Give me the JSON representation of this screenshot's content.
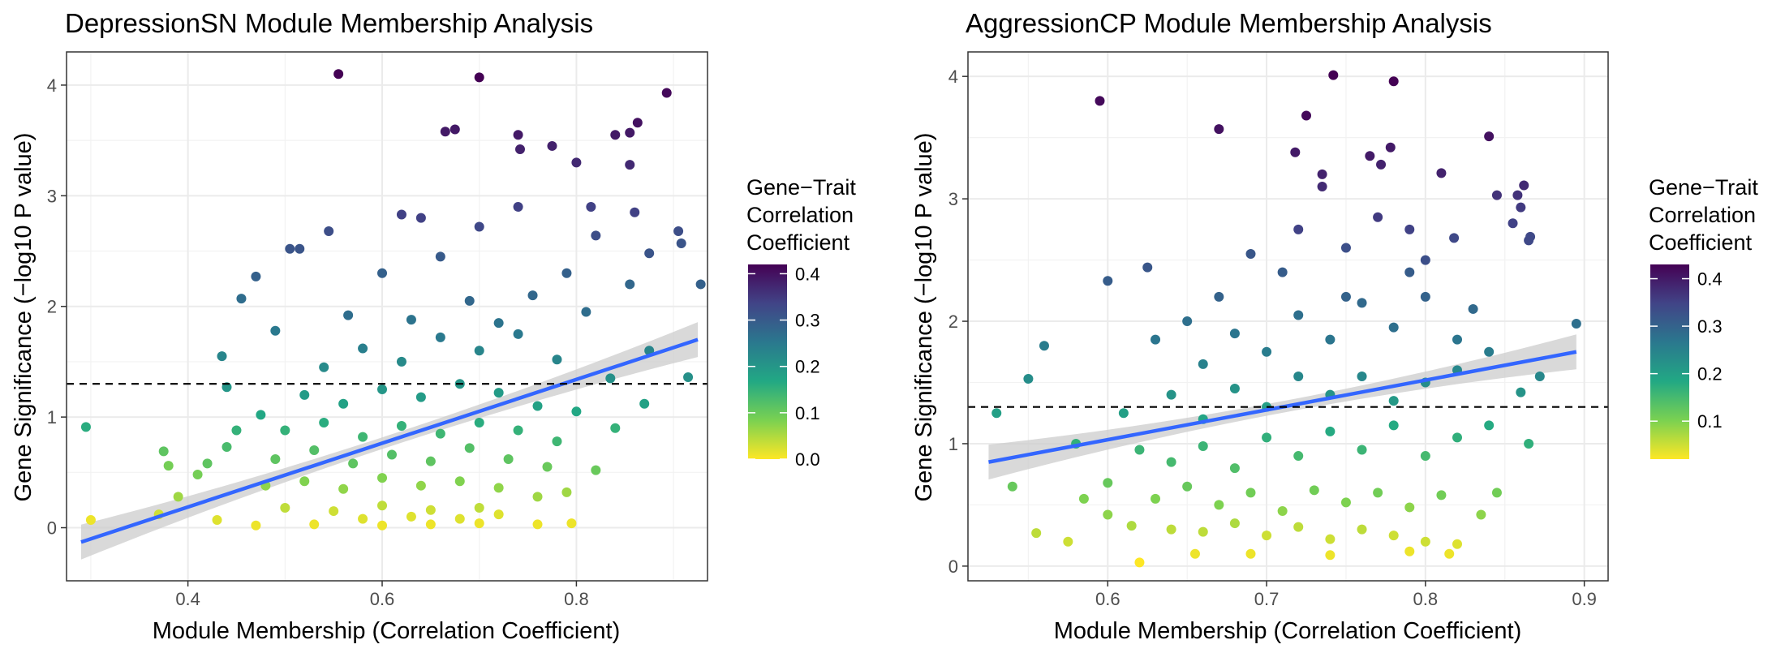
{
  "panels": [
    {
      "title": "DepressionSN Module Membership Analysis",
      "legend_title": [
        "Gene−Trait",
        "Correlation",
        "Coefficient"
      ]
    },
    {
      "title": "AggressionCP Module Membership Analysis",
      "legend_title": [
        "Gene−Trait",
        "Correlation",
        "Coefficient"
      ]
    }
  ],
  "colorscale": [
    "#fde725",
    "#7ad151",
    "#22a884",
    "#2a788e",
    "#414487",
    "#440154"
  ],
  "colors": {
    "fit_line": "#3366ff",
    "confidence_band": "#cccccc",
    "threshold_line": "#000000"
  },
  "chart_data": [
    {
      "type": "scatter",
      "title": "DepressionSN Module Membership Analysis",
      "xlabel": "Module Membership (Correlation Coefficient)",
      "ylabel": "Gene Significance (−log10 P value)",
      "xlim": [
        0.275,
        0.935
      ],
      "ylim": [
        -0.48,
        4.3
      ],
      "xticks": [
        0.4,
        0.6,
        0.8
      ],
      "yticks": [
        0,
        1,
        2,
        3,
        4
      ],
      "grid": true,
      "threshold": 1.3,
      "threshold_style": "dashed",
      "color_variable": "Gene-Trait Correlation Coefficient",
      "color_range": [
        0.0,
        0.42
      ],
      "colorbar_ticks": [
        0.0,
        0.1,
        0.2,
        0.3,
        0.4
      ],
      "fit": {
        "x": [
          0.29,
          0.925
        ],
        "y": [
          -0.13,
          1.7
        ]
      },
      "points": [
        [
          0.295,
          0.91,
          0.16
        ],
        [
          0.3,
          0.07,
          0.01
        ],
        [
          0.375,
          0.69,
          0.11
        ],
        [
          0.38,
          0.56,
          0.09
        ],
        [
          0.555,
          4.1,
          0.42
        ],
        [
          0.7,
          4.07,
          0.42
        ],
        [
          0.893,
          3.93,
          0.41
        ],
        [
          0.863,
          3.66,
          0.4
        ],
        [
          0.665,
          3.58,
          0.39
        ],
        [
          0.675,
          3.6,
          0.39
        ],
        [
          0.84,
          3.55,
          0.39
        ],
        [
          0.855,
          3.57,
          0.39
        ],
        [
          0.775,
          3.45,
          0.38
        ],
        [
          0.74,
          3.55,
          0.39
        ],
        [
          0.742,
          3.42,
          0.38
        ],
        [
          0.8,
          3.3,
          0.37
        ],
        [
          0.855,
          3.28,
          0.37
        ],
        [
          0.62,
          2.83,
          0.34
        ],
        [
          0.545,
          2.68,
          0.32
        ],
        [
          0.505,
          2.52,
          0.31
        ],
        [
          0.515,
          2.52,
          0.31
        ],
        [
          0.47,
          2.27,
          0.29
        ],
        [
          0.455,
          2.07,
          0.27
        ],
        [
          0.905,
          2.68,
          0.32
        ],
        [
          0.908,
          2.57,
          0.31
        ],
        [
          0.928,
          2.2,
          0.29
        ],
        [
          0.875,
          2.48,
          0.31
        ],
        [
          0.74,
          2.9,
          0.34
        ],
        [
          0.815,
          2.9,
          0.34
        ],
        [
          0.86,
          2.85,
          0.34
        ],
        [
          0.64,
          2.8,
          0.34
        ],
        [
          0.7,
          2.72,
          0.33
        ],
        [
          0.49,
          1.78,
          0.25
        ],
        [
          0.435,
          1.55,
          0.23
        ],
        [
          0.44,
          1.27,
          0.2
        ],
        [
          0.475,
          1.02,
          0.17
        ],
        [
          0.45,
          0.88,
          0.15
        ],
        [
          0.44,
          0.73,
          0.13
        ],
        [
          0.42,
          0.58,
          0.11
        ],
        [
          0.41,
          0.48,
          0.09
        ],
        [
          0.39,
          0.28,
          0.06
        ],
        [
          0.37,
          0.12,
          0.03
        ],
        [
          0.43,
          0.07,
          0.02
        ],
        [
          0.47,
          0.02,
          0.01
        ],
        [
          0.53,
          0.03,
          0.01
        ],
        [
          0.6,
          0.02,
          0.01
        ],
        [
          0.65,
          0.03,
          0.01
        ],
        [
          0.7,
          0.04,
          0.01
        ],
        [
          0.76,
          0.03,
          0.01
        ],
        [
          0.795,
          0.04,
          0.01
        ],
        [
          0.72,
          0.12,
          0.02
        ],
        [
          0.82,
          0.52,
          0.1
        ],
        [
          0.79,
          0.32,
          0.06
        ],
        [
          0.84,
          0.9,
          0.15
        ],
        [
          0.87,
          1.12,
          0.18
        ],
        [
          0.915,
          1.36,
          0.21
        ],
        [
          0.835,
          1.35,
          0.21
        ],
        [
          0.875,
          1.6,
          0.23
        ],
        [
          0.81,
          1.95,
          0.27
        ],
        [
          0.79,
          2.3,
          0.29
        ],
        [
          0.855,
          2.2,
          0.28
        ],
        [
          0.82,
          2.64,
          0.32
        ],
        [
          0.6,
          2.3,
          0.29
        ],
        [
          0.66,
          2.45,
          0.3
        ],
        [
          0.565,
          1.92,
          0.27
        ],
        [
          0.63,
          1.88,
          0.26
        ],
        [
          0.69,
          2.05,
          0.28
        ],
        [
          0.755,
          2.1,
          0.28
        ],
        [
          0.72,
          1.85,
          0.26
        ],
        [
          0.54,
          1.45,
          0.22
        ],
        [
          0.58,
          1.62,
          0.24
        ],
        [
          0.62,
          1.5,
          0.22
        ],
        [
          0.66,
          1.72,
          0.25
        ],
        [
          0.7,
          1.6,
          0.23
        ],
        [
          0.74,
          1.75,
          0.25
        ],
        [
          0.78,
          1.52,
          0.23
        ],
        [
          0.52,
          1.2,
          0.19
        ],
        [
          0.56,
          1.12,
          0.18
        ],
        [
          0.6,
          1.25,
          0.2
        ],
        [
          0.64,
          1.18,
          0.19
        ],
        [
          0.68,
          1.3,
          0.2
        ],
        [
          0.72,
          1.22,
          0.19
        ],
        [
          0.76,
          1.1,
          0.18
        ],
        [
          0.8,
          1.05,
          0.17
        ],
        [
          0.5,
          0.88,
          0.15
        ],
        [
          0.54,
          0.95,
          0.16
        ],
        [
          0.58,
          0.82,
          0.14
        ],
        [
          0.62,
          0.92,
          0.15
        ],
        [
          0.66,
          0.85,
          0.14
        ],
        [
          0.7,
          0.95,
          0.16
        ],
        [
          0.74,
          0.88,
          0.15
        ],
        [
          0.78,
          0.78,
          0.14
        ],
        [
          0.49,
          0.62,
          0.11
        ],
        [
          0.53,
          0.7,
          0.12
        ],
        [
          0.57,
          0.58,
          0.11
        ],
        [
          0.61,
          0.66,
          0.12
        ],
        [
          0.65,
          0.6,
          0.11
        ],
        [
          0.69,
          0.72,
          0.12
        ],
        [
          0.73,
          0.62,
          0.11
        ],
        [
          0.77,
          0.55,
          0.1
        ],
        [
          0.48,
          0.38,
          0.07
        ],
        [
          0.52,
          0.42,
          0.08
        ],
        [
          0.56,
          0.35,
          0.07
        ],
        [
          0.6,
          0.45,
          0.08
        ],
        [
          0.64,
          0.38,
          0.07
        ],
        [
          0.68,
          0.42,
          0.08
        ],
        [
          0.72,
          0.36,
          0.07
        ],
        [
          0.76,
          0.28,
          0.06
        ],
        [
          0.5,
          0.18,
          0.04
        ],
        [
          0.55,
          0.15,
          0.03
        ],
        [
          0.6,
          0.2,
          0.04
        ],
        [
          0.65,
          0.16,
          0.03
        ],
        [
          0.7,
          0.18,
          0.04
        ],
        [
          0.68,
          0.08,
          0.02
        ],
        [
          0.58,
          0.08,
          0.02
        ],
        [
          0.63,
          0.1,
          0.02
        ]
      ]
    },
    {
      "type": "scatter",
      "title": "AggressionCP Module Membership Analysis",
      "xlabel": "Module Membership (Correlation Coefficient)",
      "ylabel": "Gene Significance (−log10 P value)",
      "xlim": [
        0.512,
        0.915
      ],
      "ylim": [
        -0.12,
        4.2
      ],
      "xticks": [
        0.6,
        0.7,
        0.8,
        0.9
      ],
      "yticks": [
        0,
        1,
        2,
        3,
        4
      ],
      "grid": true,
      "threshold": 1.3,
      "threshold_style": "dashed",
      "color_variable": "Gene-Trait Correlation Coefficient",
      "color_range": [
        0.02,
        0.43
      ],
      "colorbar_ticks": [
        0.1,
        0.2,
        0.3,
        0.4
      ],
      "fit": {
        "x": [
          0.525,
          0.895
        ],
        "y": [
          0.85,
          1.75
        ]
      },
      "points": [
        [
          0.595,
          3.8,
          0.42
        ],
        [
          0.67,
          3.57,
          0.41
        ],
        [
          0.742,
          4.01,
          0.43
        ],
        [
          0.78,
          3.96,
          0.43
        ],
        [
          0.725,
          3.68,
          0.42
        ],
        [
          0.718,
          3.38,
          0.4
        ],
        [
          0.765,
          3.35,
          0.4
        ],
        [
          0.778,
          3.42,
          0.4
        ],
        [
          0.772,
          3.28,
          0.39
        ],
        [
          0.735,
          3.2,
          0.39
        ],
        [
          0.735,
          3.1,
          0.38
        ],
        [
          0.81,
          3.21,
          0.39
        ],
        [
          0.84,
          3.51,
          0.41
        ],
        [
          0.862,
          3.11,
          0.38
        ],
        [
          0.858,
          3.03,
          0.37
        ],
        [
          0.845,
          3.03,
          0.37
        ],
        [
          0.86,
          2.93,
          0.36
        ],
        [
          0.855,
          2.8,
          0.35
        ],
        [
          0.866,
          2.69,
          0.34
        ],
        [
          0.865,
          2.66,
          0.34
        ],
        [
          0.818,
          2.68,
          0.34
        ],
        [
          0.79,
          2.75,
          0.35
        ],
        [
          0.8,
          2.5,
          0.33
        ],
        [
          0.6,
          2.33,
          0.31
        ],
        [
          0.625,
          2.44,
          0.32
        ],
        [
          0.56,
          1.8,
          0.26
        ],
        [
          0.55,
          1.53,
          0.23
        ],
        [
          0.53,
          1.25,
          0.2
        ],
        [
          0.54,
          0.65,
          0.12
        ],
        [
          0.555,
          0.27,
          0.06
        ],
        [
          0.575,
          0.2,
          0.05
        ],
        [
          0.62,
          0.03,
          0.02
        ],
        [
          0.655,
          0.1,
          0.03
        ],
        [
          0.69,
          0.1,
          0.03
        ],
        [
          0.74,
          0.09,
          0.03
        ],
        [
          0.79,
          0.12,
          0.03
        ],
        [
          0.815,
          0.1,
          0.03
        ],
        [
          0.82,
          0.18,
          0.04
        ],
        [
          0.895,
          1.98,
          0.28
        ],
        [
          0.872,
          1.55,
          0.24
        ],
        [
          0.86,
          1.42,
          0.22
        ],
        [
          0.865,
          1.0,
          0.17
        ],
        [
          0.845,
          0.6,
          0.11
        ],
        [
          0.835,
          0.42,
          0.09
        ],
        [
          0.58,
          1.0,
          0.17
        ],
        [
          0.6,
          0.68,
          0.12
        ],
        [
          0.61,
          1.25,
          0.2
        ],
        [
          0.63,
          1.85,
          0.27
        ],
        [
          0.65,
          2.0,
          0.28
        ],
        [
          0.67,
          2.2,
          0.3
        ],
        [
          0.69,
          2.55,
          0.32
        ],
        [
          0.71,
          2.4,
          0.31
        ],
        [
          0.72,
          2.75,
          0.35
        ],
        [
          0.75,
          2.6,
          0.33
        ],
        [
          0.77,
          2.85,
          0.36
        ],
        [
          0.66,
          1.65,
          0.25
        ],
        [
          0.68,
          1.9,
          0.27
        ],
        [
          0.7,
          1.75,
          0.26
        ],
        [
          0.72,
          2.05,
          0.28
        ],
        [
          0.74,
          1.85,
          0.27
        ],
        [
          0.76,
          2.15,
          0.29
        ],
        [
          0.78,
          1.95,
          0.28
        ],
        [
          0.8,
          2.2,
          0.3
        ],
        [
          0.82,
          1.85,
          0.27
        ],
        [
          0.64,
          1.4,
          0.22
        ],
        [
          0.66,
          1.2,
          0.19
        ],
        [
          0.68,
          1.45,
          0.22
        ],
        [
          0.7,
          1.3,
          0.2
        ],
        [
          0.72,
          1.55,
          0.24
        ],
        [
          0.74,
          1.4,
          0.22
        ],
        [
          0.76,
          1.55,
          0.24
        ],
        [
          0.78,
          1.35,
          0.21
        ],
        [
          0.8,
          1.5,
          0.23
        ],
        [
          0.82,
          1.6,
          0.24
        ],
        [
          0.84,
          1.75,
          0.26
        ],
        [
          0.62,
          0.95,
          0.16
        ],
        [
          0.64,
          0.85,
          0.15
        ],
        [
          0.66,
          0.98,
          0.16
        ],
        [
          0.68,
          0.8,
          0.14
        ],
        [
          0.7,
          1.05,
          0.17
        ],
        [
          0.72,
          0.9,
          0.15
        ],
        [
          0.74,
          1.1,
          0.18
        ],
        [
          0.76,
          0.95,
          0.16
        ],
        [
          0.78,
          1.15,
          0.18
        ],
        [
          0.8,
          0.9,
          0.15
        ],
        [
          0.82,
          1.05,
          0.17
        ],
        [
          0.84,
          1.15,
          0.18
        ],
        [
          0.63,
          0.55,
          0.1
        ],
        [
          0.65,
          0.65,
          0.12
        ],
        [
          0.67,
          0.5,
          0.1
        ],
        [
          0.69,
          0.6,
          0.11
        ],
        [
          0.71,
          0.45,
          0.09
        ],
        [
          0.73,
          0.62,
          0.11
        ],
        [
          0.75,
          0.52,
          0.1
        ],
        [
          0.77,
          0.6,
          0.11
        ],
        [
          0.79,
          0.48,
          0.09
        ],
        [
          0.81,
          0.58,
          0.11
        ],
        [
          0.64,
          0.3,
          0.06
        ],
        [
          0.66,
          0.28,
          0.06
        ],
        [
          0.68,
          0.35,
          0.07
        ],
        [
          0.7,
          0.25,
          0.05
        ],
        [
          0.72,
          0.32,
          0.06
        ],
        [
          0.74,
          0.22,
          0.05
        ],
        [
          0.76,
          0.3,
          0.06
        ],
        [
          0.78,
          0.25,
          0.05
        ],
        [
          0.8,
          0.2,
          0.05
        ],
        [
          0.585,
          0.55,
          0.1
        ],
        [
          0.6,
          0.42,
          0.09
        ],
        [
          0.615,
          0.33,
          0.07
        ],
        [
          0.75,
          2.2,
          0.3
        ],
        [
          0.79,
          2.4,
          0.31
        ],
        [
          0.83,
          2.1,
          0.29
        ]
      ]
    }
  ]
}
